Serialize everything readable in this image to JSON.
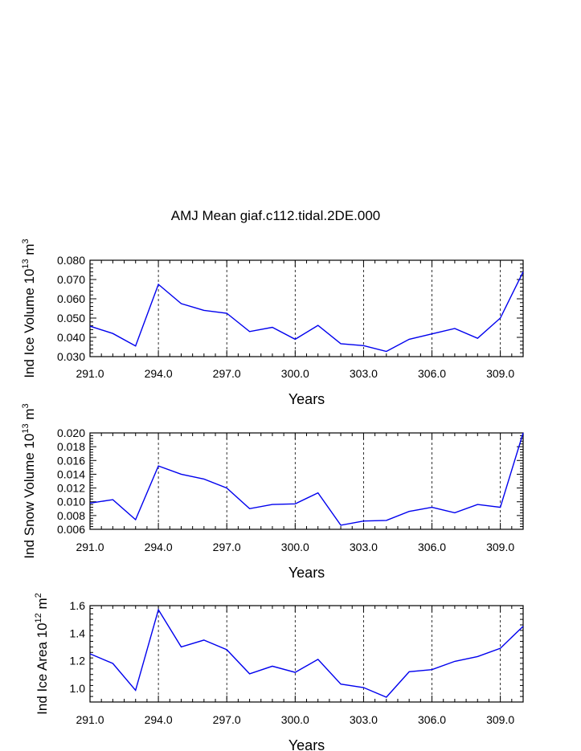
{
  "title": "AMJ Mean giaf.c112.tidal.2DE.000",
  "chart_data": [
    {
      "type": "line",
      "ylabel_main": "Ind Ice Volume 10",
      "ylabel_exp": "13",
      "ylabel_unit": "m",
      "ylabel_unit_exp": "3",
      "xlabel": "Years",
      "xlim": [
        291,
        310
      ],
      "ylim": [
        0.03,
        0.08
      ],
      "yticks": [
        0.03,
        0.04,
        0.05,
        0.06,
        0.07,
        0.08
      ],
      "ytick_labels": [
        "0.030",
        "0.040",
        "0.050",
        "0.060",
        "0.070",
        "0.080"
      ],
      "xticks": [
        291,
        294,
        297,
        300,
        303,
        306,
        309
      ],
      "xtick_labels": [
        "291.0",
        "294.0",
        "297.0",
        "300.0",
        "303.0",
        "306.0",
        "309.0"
      ],
      "x": [
        291,
        292,
        293,
        294,
        295,
        296,
        297,
        298,
        299,
        300,
        301,
        302,
        303,
        304,
        305,
        306,
        307,
        308,
        309,
        310
      ],
      "values": [
        0.0458,
        0.042,
        0.0355,
        0.0675,
        0.0575,
        0.054,
        0.0525,
        0.043,
        0.0452,
        0.039,
        0.0462,
        0.0367,
        0.0357,
        0.0327,
        0.039,
        0.0418,
        0.0446,
        0.0395,
        0.05,
        0.074
      ],
      "line_color": "#0000ee",
      "grid": "vertical dashed at major x ticks"
    },
    {
      "type": "line",
      "ylabel_main": "Ind Snow Volume 10",
      "ylabel_exp": "13",
      "ylabel_unit": "m",
      "ylabel_unit_exp": "3",
      "xlabel": "Years",
      "xlim": [
        291,
        310
      ],
      "ylim": [
        0.006,
        0.02
      ],
      "yticks": [
        0.006,
        0.008,
        0.01,
        0.012,
        0.014,
        0.016,
        0.018,
        0.02
      ],
      "ytick_labels": [
        "0.006",
        "0.008",
        "0.010",
        "0.012",
        "0.014",
        "0.016",
        "0.018",
        "0.020"
      ],
      "xticks": [
        291,
        294,
        297,
        300,
        303,
        306,
        309
      ],
      "xtick_labels": [
        "291.0",
        "294.0",
        "297.0",
        "300.0",
        "303.0",
        "306.0",
        "309.0"
      ],
      "x": [
        291,
        292,
        293,
        294,
        295,
        296,
        297,
        298,
        299,
        300,
        301,
        302,
        303,
        304,
        305,
        306,
        307,
        308,
        309,
        310
      ],
      "values": [
        0.0098,
        0.0103,
        0.0074,
        0.0152,
        0.014,
        0.0133,
        0.012,
        0.009,
        0.0096,
        0.0097,
        0.0113,
        0.0066,
        0.0072,
        0.0073,
        0.0086,
        0.0092,
        0.0084,
        0.0096,
        0.0092,
        0.02
      ],
      "line_color": "#0000ee",
      "grid": "vertical dashed at major x ticks"
    },
    {
      "type": "line",
      "ylabel_main": "Ind Ice Area 10",
      "ylabel_exp": "12",
      "ylabel_unit": "m",
      "ylabel_unit_exp": "2",
      "xlabel": "Years",
      "xlim": [
        291,
        310
      ],
      "ylim": [
        0.9,
        1.6
      ],
      "yticks": [
        1.0,
        1.2,
        1.4,
        1.6
      ],
      "ytick_labels": [
        "1.0",
        "1.2",
        "1.4",
        "1.6"
      ],
      "xticks": [
        291,
        294,
        297,
        300,
        303,
        306,
        309
      ],
      "xtick_labels": [
        "291.0",
        "294.0",
        "297.0",
        "300.0",
        "303.0",
        "306.0",
        "309.0"
      ],
      "x": [
        291,
        292,
        293,
        294,
        295,
        296,
        297,
        298,
        299,
        300,
        301,
        302,
        303,
        304,
        305,
        306,
        307,
        308,
        309,
        310
      ],
      "values": [
        1.25,
        1.18,
        0.985,
        1.57,
        1.3,
        1.35,
        1.28,
        1.105,
        1.16,
        1.115,
        1.21,
        1.03,
        1.005,
        0.935,
        1.12,
        1.135,
        1.195,
        1.23,
        1.29,
        1.45
      ],
      "line_color": "#0000ee",
      "grid": "vertical dashed at major x ticks"
    }
  ]
}
